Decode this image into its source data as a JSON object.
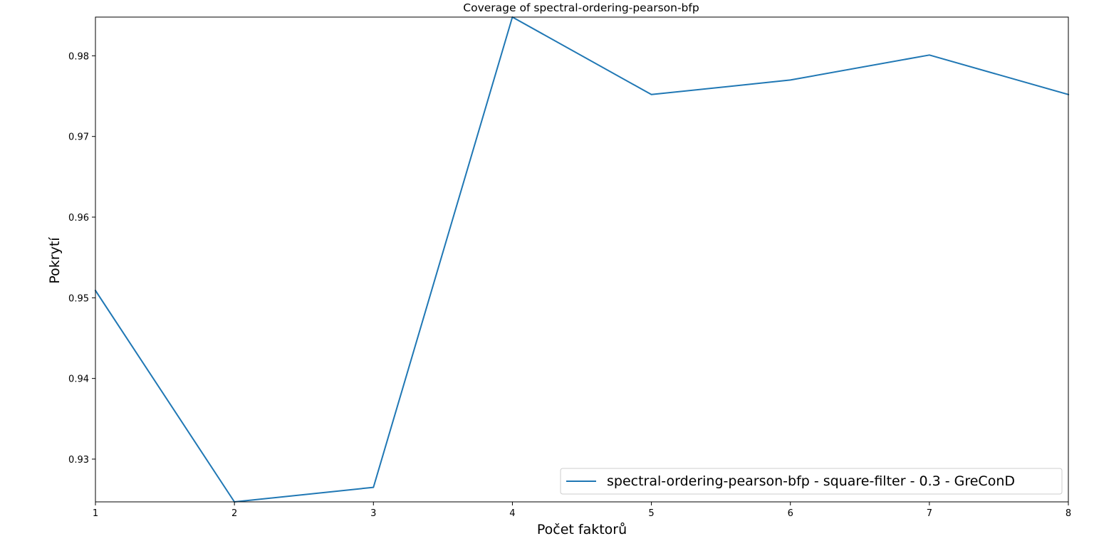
{
  "chart_data": {
    "type": "line",
    "title": "Coverage of spectral-ordering-pearson-bfp",
    "xlabel": "Počet faktorů",
    "ylabel": "Pokrytí",
    "x": [
      1,
      2,
      3,
      4,
      5,
      6,
      7,
      8
    ],
    "xlim": [
      1,
      8
    ],
    "ylim": [
      0.9247,
      0.9848
    ],
    "x_ticks": [
      "1",
      "2",
      "3",
      "4",
      "5",
      "6",
      "7",
      "8"
    ],
    "y_ticks": [
      0.93,
      0.94,
      0.95,
      0.96,
      0.97,
      0.98
    ],
    "y_tick_labels": [
      "0.93",
      "0.94",
      "0.95",
      "0.96",
      "0.97",
      "0.98"
    ],
    "grid": false,
    "legend_position": "bottom-right",
    "series": [
      {
        "name": "spectral-ordering-pearson-bfp - square-filter - 0.3 - GreConD",
        "color": "#1f77b4",
        "values": [
          0.9509,
          0.9247,
          0.9265,
          0.9848,
          0.9752,
          0.977,
          0.9801,
          0.9752
        ]
      }
    ]
  }
}
